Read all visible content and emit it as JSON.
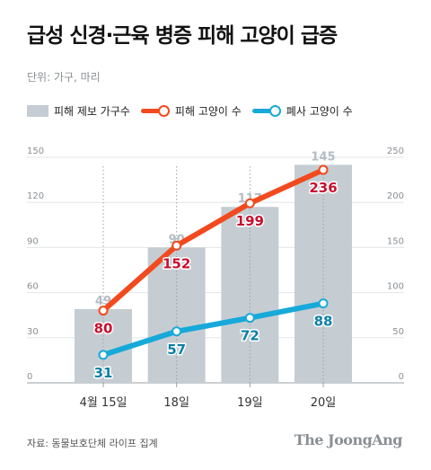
{
  "title": "급성 신경·근육 병증 피해 고양이 급증",
  "unit": "단위: 가구, 마리",
  "legend": {
    "bar": "피해 제보 가구수",
    "red": "피해 고양이 수",
    "blue": "폐사 고양이 수"
  },
  "colors": {
    "bar": "#c5cdd3",
    "bar_label": "#b3bcc3",
    "red": "#f24a1e",
    "red_label": "#c8102e",
    "blue": "#17a9d9",
    "blue_label": "#0b7fa7",
    "axis_text": "#8a8f94"
  },
  "chart_data": {
    "type": "bar",
    "categories": [
      "4월 15일",
      "18일",
      "19일",
      "20일"
    ],
    "series": [
      {
        "name": "피해 제보 가구수",
        "type": "bar",
        "axis": "left",
        "values": [
          49,
          90,
          117,
          145
        ]
      },
      {
        "name": "피해 고양이 수",
        "type": "line",
        "axis": "right",
        "values": [
          80,
          152,
          199,
          236
        ]
      },
      {
        "name": "폐사 고양이 수",
        "type": "line",
        "axis": "right",
        "values": [
          31,
          57,
          72,
          88
        ]
      }
    ],
    "y_left": {
      "min": 0,
      "max": 150,
      "ticks": [
        0,
        30,
        60,
        90,
        120,
        150
      ]
    },
    "y_right": {
      "min": 0,
      "max": 250,
      "ticks": [
        0,
        50,
        100,
        150,
        200,
        250
      ]
    },
    "grid": true,
    "legend_position": "top-left"
  },
  "source": "자료: 동물보호단체 라이프 집계",
  "logo": "The JoongAng"
}
